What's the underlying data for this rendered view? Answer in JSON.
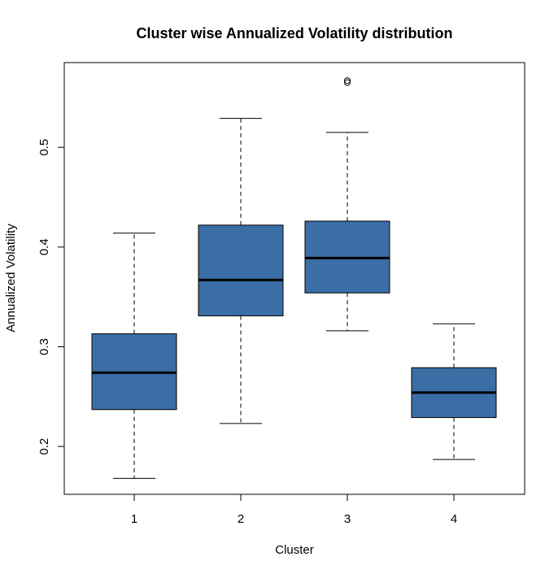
{
  "chart_data": {
    "type": "boxplot",
    "title": "Cluster wise Annualized Volatility distribution",
    "xlabel": "Cluster",
    "ylabel": "Annualized Volatility",
    "ylim": [
      0.152,
      0.585
    ],
    "yticks": [
      "0.2",
      "0.3",
      "0.4",
      "0.5"
    ],
    "categories": [
      "1",
      "2",
      "3",
      "4"
    ],
    "grid": false,
    "box_color": "#3A6EA5",
    "series": [
      {
        "category": "1",
        "whisker_low": 0.168,
        "q1": 0.237,
        "median": 0.274,
        "q3": 0.313,
        "whisker_high": 0.414,
        "outliers": []
      },
      {
        "category": "2",
        "whisker_low": 0.223,
        "q1": 0.331,
        "median": 0.367,
        "q3": 0.422,
        "whisker_high": 0.529,
        "outliers": []
      },
      {
        "category": "3",
        "whisker_low": 0.316,
        "q1": 0.354,
        "median": 0.389,
        "q3": 0.426,
        "whisker_high": 0.515,
        "outliers": [
          0.565,
          0.567
        ]
      },
      {
        "category": "4",
        "whisker_low": 0.187,
        "q1": 0.229,
        "median": 0.254,
        "q3": 0.279,
        "whisker_high": 0.323,
        "outliers": []
      }
    ]
  }
}
